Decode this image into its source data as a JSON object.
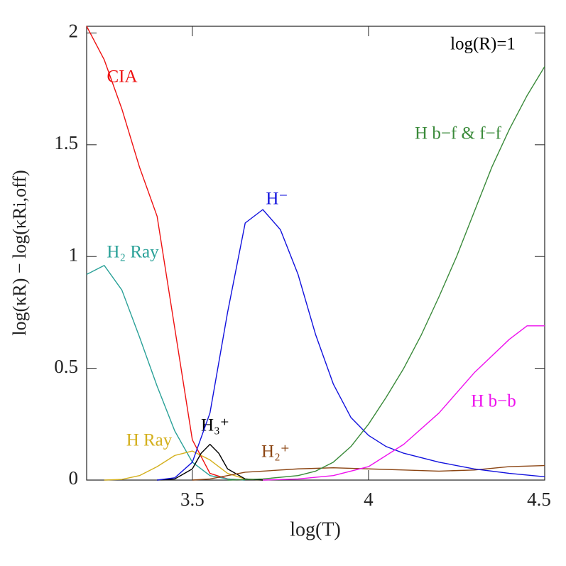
{
  "chart_data": {
    "type": "line",
    "annotation": "log(R)=1",
    "x_label": "log(T)",
    "y_label": "log(κR) − log(κRi,off)",
    "xlim": [
      3.2,
      4.5
    ],
    "ylim": [
      0,
      2.03
    ],
    "xticks": [
      3.5,
      4,
      4.5
    ],
    "yticks": [
      0,
      0.5,
      1,
      1.5,
      2
    ],
    "series": [
      {
        "name": "CIA",
        "color": "#ee1111",
        "x": [
          3.2,
          3.25,
          3.3,
          3.35,
          3.4,
          3.45,
          3.5,
          3.55,
          3.6,
          3.65
        ],
        "values": [
          2.03,
          1.88,
          1.66,
          1.4,
          1.18,
          0.68,
          0.18,
          0.03,
          0.005,
          0
        ]
      },
      {
        "name": "H₂ Ray",
        "color": "#2aa198",
        "x": [
          3.2,
          3.25,
          3.3,
          3.35,
          3.4,
          3.45,
          3.5,
          3.55,
          3.6,
          3.65
        ],
        "values": [
          0.92,
          0.96,
          0.85,
          0.64,
          0.42,
          0.22,
          0.08,
          0.02,
          0.005,
          0
        ]
      },
      {
        "name": "H Ray",
        "color": "#d4b01e",
        "x": [
          3.25,
          3.3,
          3.35,
          3.4,
          3.45,
          3.5,
          3.55,
          3.6,
          3.65,
          3.7
        ],
        "values": [
          0,
          0.003,
          0.02,
          0.06,
          0.11,
          0.13,
          0.09,
          0.03,
          0.005,
          0
        ]
      },
      {
        "name": "H₃⁺",
        "color": "#000000",
        "x": [
          3.4,
          3.45,
          3.5,
          3.525,
          3.55,
          3.575,
          3.6,
          3.65,
          3.7
        ],
        "values": [
          0,
          0.005,
          0.05,
          0.12,
          0.16,
          0.12,
          0.05,
          0.005,
          0
        ]
      },
      {
        "name": "H₂⁺",
        "color": "#8b4513",
        "x": [
          3.5,
          3.55,
          3.6,
          3.65,
          3.7,
          3.8,
          3.9,
          4,
          4.1,
          4.2,
          4.3,
          4.4,
          4.5
        ],
        "values": [
          0,
          0.005,
          0.02,
          0.035,
          0.04,
          0.05,
          0.055,
          0.05,
          0.045,
          0.04,
          0.045,
          0.06,
          0.065
        ]
      },
      {
        "name": "H⁻",
        "color": "#1111dd",
        "x": [
          3.4,
          3.45,
          3.5,
          3.55,
          3.6,
          3.65,
          3.7,
          3.75,
          3.8,
          3.85,
          3.9,
          3.95,
          4,
          4.05,
          4.1,
          4.2,
          4.3,
          4.4,
          4.5
        ],
        "values": [
          0,
          0.01,
          0.08,
          0.3,
          0.75,
          1.15,
          1.21,
          1.12,
          0.92,
          0.65,
          0.43,
          0.28,
          0.2,
          0.15,
          0.12,
          0.08,
          0.05,
          0.03,
          0.015
        ]
      },
      {
        "name": "H b−f & f−f",
        "color": "#3a8a3a",
        "x": [
          3.6,
          3.7,
          3.8,
          3.85,
          3.9,
          3.95,
          4,
          4.05,
          4.1,
          4.15,
          4.2,
          4.25,
          4.3,
          4.35,
          4.4,
          4.45,
          4.5
        ],
        "values": [
          0,
          0.005,
          0.02,
          0.04,
          0.08,
          0.15,
          0.25,
          0.37,
          0.5,
          0.65,
          0.82,
          1.0,
          1.2,
          1.4,
          1.57,
          1.72,
          1.85
        ]
      },
      {
        "name": "H b−b",
        "color": "#ee11ee",
        "x": [
          3.7,
          3.8,
          3.9,
          4,
          4.1,
          4.2,
          4.3,
          4.4,
          4.45,
          4.5
        ],
        "values": [
          0,
          0.005,
          0.02,
          0.06,
          0.16,
          0.3,
          0.48,
          0.63,
          0.69,
          0.69
        ]
      }
    ]
  }
}
